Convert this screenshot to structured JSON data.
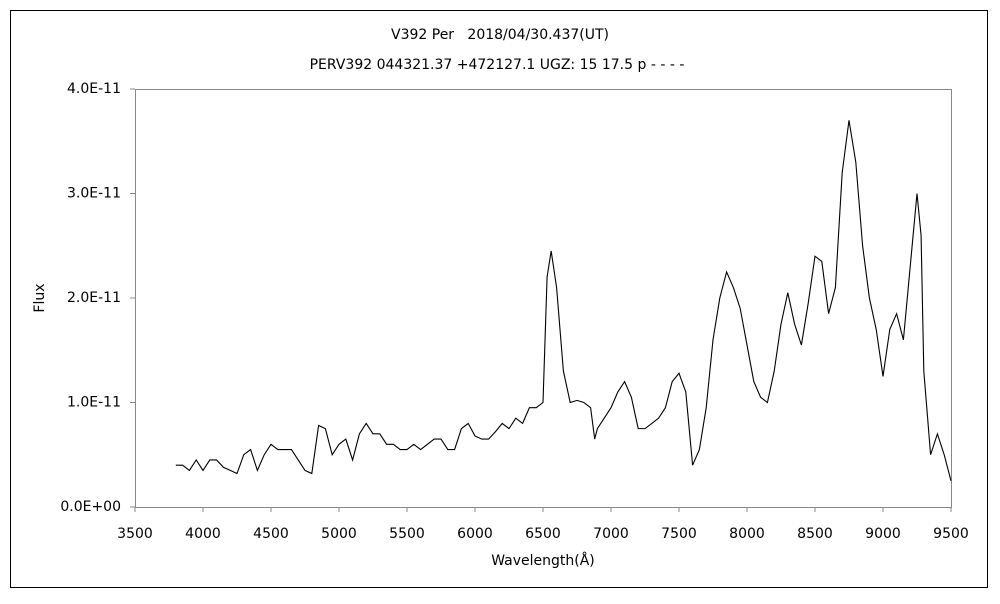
{
  "chart_data": {
    "type": "line",
    "title": "V392 Per   2018/04/30.437(UT)",
    "subtitle": "PERV392 044321.37 +472127.1 UGZ: 15 17.5 p - - - -",
    "x_label": "Wavelength(Å)",
    "y_label": "Flux",
    "x": [
      3800,
      3850,
      3900,
      3950,
      4000,
      4050,
      4100,
      4150,
      4200,
      4250,
      4300,
      4350,
      4400,
      4450,
      4500,
      4550,
      4600,
      4650,
      4700,
      4750,
      4800,
      4850,
      4900,
      4950,
      5000,
      5050,
      5100,
      5150,
      5200,
      5250,
      5300,
      5350,
      5400,
      5450,
      5500,
      5550,
      5600,
      5650,
      5700,
      5750,
      5800,
      5850,
      5900,
      5950,
      6000,
      6050,
      6100,
      6150,
      6200,
      6250,
      6300,
      6350,
      6400,
      6450,
      6500,
      6530,
      6560,
      6600,
      6650,
      6700,
      6750,
      6800,
      6850,
      6880,
      6900,
      6950,
      7000,
      7050,
      7100,
      7150,
      7200,
      7250,
      7300,
      7350,
      7400,
      7450,
      7500,
      7550,
      7600,
      7650,
      7700,
      7750,
      7800,
      7850,
      7900,
      7950,
      8000,
      8050,
      8100,
      8150,
      8200,
      8250,
      8300,
      8350,
      8400,
      8450,
      8500,
      8550,
      8600,
      8650,
      8700,
      8750,
      8800,
      8850,
      8900,
      8950,
      9000,
      9050,
      9100,
      9150,
      9200,
      9250,
      9280,
      9300,
      9350,
      9400,
      9450,
      9500
    ],
    "series": [
      {
        "name": "Flux",
        "color": "#000000",
        "values": [
          4e-12,
          4e-12,
          3.5e-12,
          4.5e-12,
          3.5e-12,
          4.5e-12,
          4.5e-12,
          3.8e-12,
          3.5e-12,
          3.2e-12,
          5e-12,
          5.5e-12,
          3.5e-12,
          5e-12,
          6e-12,
          5.5e-12,
          5.5e-12,
          5.5e-12,
          4.5e-12,
          3.5e-12,
          3.2e-12,
          7.8e-12,
          7.5e-12,
          5e-12,
          6e-12,
          6.5e-12,
          4.5e-12,
          7e-12,
          8e-12,
          7e-12,
          7e-12,
          6e-12,
          6e-12,
          5.5e-12,
          5.5e-12,
          6e-12,
          5.5e-12,
          6e-12,
          6.5e-12,
          6.5e-12,
          5.5e-12,
          5.5e-12,
          7.5e-12,
          8e-12,
          6.8e-12,
          6.5e-12,
          6.5e-12,
          7.2e-12,
          8e-12,
          7.5e-12,
          8.5e-12,
          8e-12,
          9.5e-12,
          9.5e-12,
          1e-11,
          2.2e-11,
          2.45e-11,
          2.1e-11,
          1.3e-11,
          1e-11,
          1.02e-11,
          1e-11,
          9.5e-12,
          6.5e-12,
          7.5e-12,
          8.5e-12,
          9.5e-12,
          1.1e-11,
          1.2e-11,
          1.05e-11,
          7.5e-12,
          7.5e-12,
          8e-12,
          8.5e-12,
          9.5e-12,
          1.2e-11,
          1.28e-11,
          1.1e-11,
          4e-12,
          5.5e-12,
          9.5e-12,
          1.6e-11,
          2e-11,
          2.25e-11,
          2.1e-11,
          1.9e-11,
          1.55e-11,
          1.2e-11,
          1.05e-11,
          1e-11,
          1.3e-11,
          1.75e-11,
          2.05e-11,
          1.75e-11,
          1.55e-11,
          1.95e-11,
          2.4e-11,
          2.35e-11,
          1.85e-11,
          2.1e-11,
          3.2e-11,
          3.7e-11,
          3.3e-11,
          2.5e-11,
          2e-11,
          1.7e-11,
          1.25e-11,
          1.7e-11,
          1.85e-11,
          1.6e-11,
          2.3e-11,
          3e-11,
          2.6e-11,
          1.3e-11,
          5e-12,
          7e-12,
          5e-12,
          2.5e-12
        ]
      }
    ],
    "xlim": [
      3500,
      9500
    ],
    "xticks": [
      3500,
      4000,
      4500,
      5000,
      5500,
      6000,
      6500,
      7000,
      7500,
      8000,
      8500,
      9000,
      9500
    ],
    "ylim": [
      0,
      4e-11
    ],
    "yticks": [
      {
        "value": 0,
        "label": "0.0E+00"
      },
      {
        "value": 1e-11,
        "label": "1.0E-11"
      },
      {
        "value": 2e-11,
        "label": "2.0E-11"
      },
      {
        "value": 3e-11,
        "label": "3.0E-11"
      },
      {
        "value": 4e-11,
        "label": "4.0E-11"
      }
    ],
    "grid": false
  }
}
